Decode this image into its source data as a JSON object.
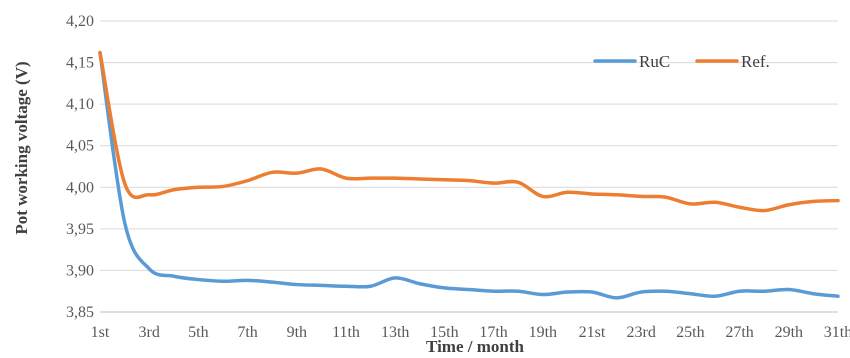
{
  "chart_data": {
    "type": "line",
    "xlabel": "Time / month",
    "ylabel": "Pot working voltage  (V)",
    "ylim": [
      3.85,
      4.2
    ],
    "yticks": [
      "3,85",
      "3,90",
      "3,95",
      "4,00",
      "4,05",
      "4,10",
      "4,15",
      "4,20"
    ],
    "x": [
      1,
      2,
      3,
      4,
      5,
      6,
      7,
      8,
      9,
      10,
      11,
      12,
      13,
      14,
      15,
      16,
      17,
      18,
      19,
      20,
      21,
      22,
      23,
      24,
      25,
      26,
      27,
      28,
      29,
      30,
      31
    ],
    "xtick_labels": [
      "1st",
      "3rd",
      "5th",
      "7th",
      "9th",
      "11th",
      "13th",
      "15th",
      "17th",
      "19th",
      "21st",
      "23rd",
      "25th",
      "27th",
      "29th",
      "31th"
    ],
    "grid": true,
    "legend_position": "top-right",
    "series": [
      {
        "name": "RuC",
        "color": "#5b9bd5",
        "values": [
          4.162,
          3.958,
          3.902,
          3.893,
          3.889,
          3.887,
          3.888,
          3.886,
          3.883,
          3.882,
          3.881,
          3.881,
          3.891,
          3.884,
          3.879,
          3.877,
          3.875,
          3.875,
          3.871,
          3.874,
          3.874,
          3.867,
          3.874,
          3.875,
          3.872,
          3.869,
          3.875,
          3.875,
          3.877,
          3.872,
          3.869
        ]
      },
      {
        "name": "Ref.",
        "color": "#ed7d31",
        "values": [
          4.162,
          4.005,
          3.991,
          3.997,
          4.0,
          4.001,
          4.008,
          4.018,
          4.017,
          4.022,
          4.011,
          4.011,
          4.011,
          4.01,
          4.009,
          4.008,
          4.005,
          4.006,
          3.989,
          3.994,
          3.992,
          3.991,
          3.989,
          3.988,
          3.98,
          3.982,
          3.976,
          3.972,
          3.979,
          3.983,
          3.984
        ]
      }
    ]
  }
}
